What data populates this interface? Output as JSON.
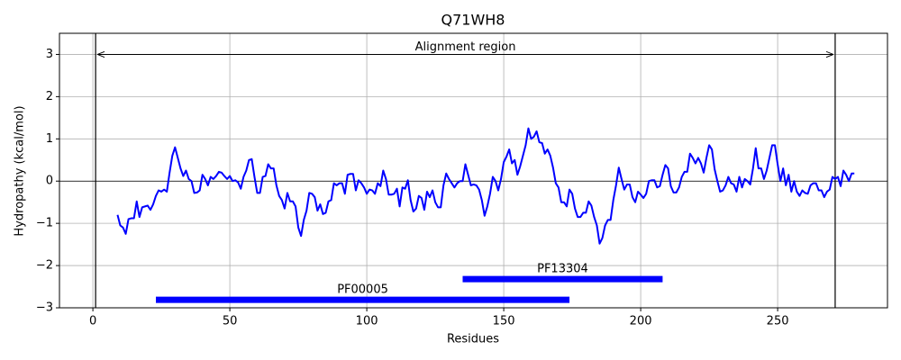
{
  "chart_data": {
    "type": "line",
    "title": "Q71WH8",
    "x_label": "Residues",
    "y_label": "Hydropathy (kcal/mol)",
    "x": [
      9,
      10,
      11,
      12,
      13,
      14,
      15,
      16,
      17,
      18,
      19,
      20,
      21,
      22,
      23,
      24,
      25,
      26,
      27,
      28,
      29,
      30,
      31,
      32,
      33,
      34,
      35,
      36,
      37,
      38,
      39,
      40,
      41,
      42,
      43,
      44,
      45,
      46,
      47,
      48,
      49,
      50,
      51,
      52,
      53,
      54,
      55,
      56,
      57,
      58,
      59,
      60,
      61,
      62,
      63,
      64,
      65,
      66,
      67,
      68,
      69,
      70,
      71,
      72,
      73,
      74,
      75,
      76,
      77,
      78,
      79,
      80,
      81,
      82,
      83,
      84,
      85,
      86,
      87,
      88,
      89,
      90,
      91,
      92,
      93,
      94,
      95,
      96,
      97,
      98,
      99,
      100,
      101,
      102,
      103,
      104,
      105,
      106,
      107,
      108,
      109,
      110,
      111,
      112,
      113,
      114,
      115,
      116,
      117,
      118,
      119,
      120,
      121,
      122,
      123,
      124,
      125,
      126,
      127,
      128,
      129,
      130,
      131,
      132,
      133,
      134,
      135,
      136,
      137,
      138,
      139,
      140,
      141,
      142,
      143,
      144,
      145,
      146,
      147,
      148,
      149,
      150,
      151,
      152,
      153,
      154,
      155,
      156,
      157,
      158,
      159,
      160,
      161,
      162,
      163,
      164,
      165,
      166,
      167,
      168,
      169,
      170,
      171,
      172,
      173,
      174,
      175,
      176,
      177,
      178,
      179,
      180,
      181,
      182,
      183,
      184,
      185,
      186,
      187,
      188,
      189,
      190,
      191,
      192,
      193,
      194,
      195,
      196,
      197,
      198,
      199,
      200,
      201,
      202,
      203,
      204,
      205,
      206,
      207,
      208,
      209,
      210,
      211,
      212,
      213,
      214,
      215,
      216,
      217,
      218,
      219,
      220,
      221,
      222,
      223,
      224,
      225,
      226,
      227,
      228,
      229,
      230,
      231,
      232,
      233,
      234,
      235,
      236,
      237,
      238,
      239,
      240,
      241,
      242,
      243,
      244,
      245,
      246,
      247,
      248,
      249,
      250,
      251,
      252,
      253,
      254,
      255,
      256,
      257,
      258,
      259,
      260,
      261,
      262,
      263,
      264,
      265,
      266,
      267,
      268,
      269,
      270,
      271,
      272,
      273,
      274,
      275,
      276,
      277,
      278
    ],
    "values": [
      -0.8,
      -1.05,
      -1.1,
      -1.25,
      -0.9,
      -0.88,
      -0.88,
      -0.48,
      -0.85,
      -0.62,
      -0.6,
      -0.58,
      -0.68,
      -0.55,
      -0.35,
      -0.22,
      -0.25,
      -0.2,
      -0.25,
      0.2,
      0.6,
      0.8,
      0.55,
      0.3,
      0.12,
      0.25,
      0.05,
      0.0,
      -0.28,
      -0.27,
      -0.22,
      0.15,
      0.05,
      -0.1,
      0.1,
      0.05,
      0.12,
      0.22,
      0.2,
      0.12,
      0.05,
      0.12,
      0.0,
      0.02,
      -0.03,
      -0.18,
      0.1,
      0.25,
      0.5,
      0.52,
      0.1,
      -0.28,
      -0.28,
      0.1,
      0.12,
      0.4,
      0.3,
      0.3,
      -0.1,
      -0.35,
      -0.45,
      -0.65,
      -0.28,
      -0.48,
      -0.48,
      -0.6,
      -1.1,
      -1.3,
      -0.92,
      -0.7,
      -0.28,
      -0.3,
      -0.38,
      -0.7,
      -0.55,
      -0.78,
      -0.75,
      -0.48,
      -0.45,
      -0.05,
      -0.1,
      -0.05,
      -0.05,
      -0.3,
      0.15,
      0.17,
      0.17,
      -0.22,
      0.02,
      -0.05,
      -0.15,
      -0.3,
      -0.2,
      -0.22,
      -0.3,
      -0.05,
      -0.12,
      0.25,
      0.05,
      -0.32,
      -0.32,
      -0.3,
      -0.18,
      -0.6,
      -0.15,
      -0.18,
      0.02,
      -0.45,
      -0.72,
      -0.65,
      -0.35,
      -0.4,
      -0.68,
      -0.25,
      -0.38,
      -0.22,
      -0.5,
      -0.62,
      -0.62,
      -0.1,
      0.18,
      0.05,
      -0.05,
      -0.15,
      -0.05,
      0.0,
      0.0,
      0.4,
      0.15,
      -0.1,
      -0.08,
      -0.1,
      -0.2,
      -0.45,
      -0.82,
      -0.6,
      -0.3,
      0.1,
      0.0,
      -0.22,
      0.05,
      0.45,
      0.58,
      0.75,
      0.42,
      0.5,
      0.15,
      0.35,
      0.6,
      0.85,
      1.25,
      1.0,
      1.05,
      1.18,
      0.92,
      0.9,
      0.65,
      0.75,
      0.6,
      0.32,
      -0.05,
      -0.15,
      -0.5,
      -0.5,
      -0.6,
      -0.2,
      -0.3,
      -0.65,
      -0.85,
      -0.85,
      -0.75,
      -0.75,
      -0.48,
      -0.58,
      -0.85,
      -1.05,
      -1.48,
      -1.35,
      -1.05,
      -0.92,
      -0.92,
      -0.45,
      -0.1,
      0.32,
      0.05,
      -0.2,
      -0.08,
      -0.08,
      -0.38,
      -0.5,
      -0.25,
      -0.32,
      -0.4,
      -0.3,
      0.0,
      0.02,
      0.02,
      -0.15,
      -0.12,
      0.15,
      0.38,
      0.3,
      -0.12,
      -0.27,
      -0.27,
      -0.15,
      0.1,
      0.22,
      0.22,
      0.65,
      0.55,
      0.42,
      0.55,
      0.42,
      0.2,
      0.55,
      0.85,
      0.75,
      0.28,
      0.0,
      -0.25,
      -0.22,
      -0.1,
      0.1,
      -0.05,
      -0.08,
      -0.25,
      0.1,
      -0.15,
      0.05,
      0.0,
      -0.08,
      0.3,
      0.78,
      0.3,
      0.3,
      0.05,
      0.25,
      0.55,
      0.85,
      0.85,
      0.4,
      0.0,
      0.3,
      -0.1,
      0.15,
      -0.25,
      0.0,
      -0.25,
      -0.35,
      -0.22,
      -0.28,
      -0.3,
      -0.1,
      -0.05,
      -0.05,
      -0.22,
      -0.22,
      -0.38,
      -0.25,
      -0.2,
      0.1,
      0.05,
      0.1,
      -0.12,
      0.25,
      0.15,
      0.0,
      0.18,
      0.18
    ],
    "color": "#0000ff",
    "hline": 0,
    "annotation": {
      "text": "Alignment region",
      "start": 1,
      "end": 271,
      "y": 3
    },
    "domains": [
      {
        "label": "PF13304",
        "start": 135,
        "end": 208,
        "y": -2.32,
        "color": "#0000ff"
      },
      {
        "label": "PF00005",
        "start": 23,
        "end": 174,
        "y": -2.81,
        "color": "#0000ff"
      }
    ],
    "xlim": [
      -12.2,
      290.1
    ],
    "ylim": [
      -3,
      3.5
    ],
    "xticks": [
      0,
      50,
      100,
      150,
      200,
      250
    ],
    "yticks": [
      {
        "value": -3,
        "label": "−3"
      },
      {
        "value": -2,
        "label": "−2"
      },
      {
        "value": -1,
        "label": "−1"
      },
      0,
      1,
      2,
      3
    ],
    "grid": true
  }
}
